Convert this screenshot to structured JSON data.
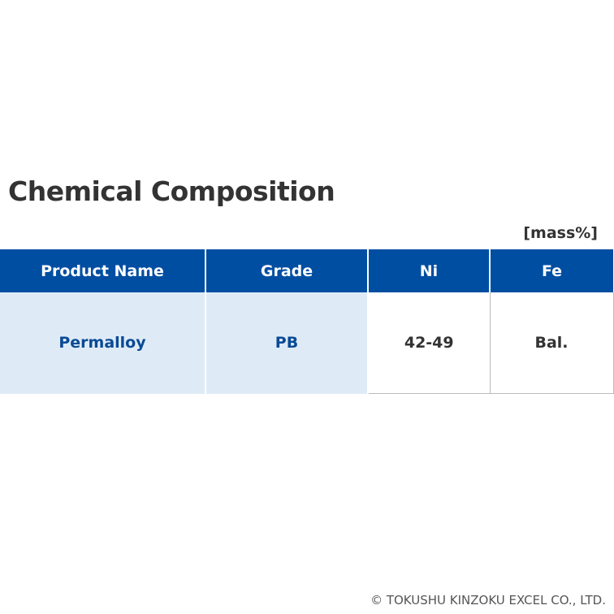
{
  "title": "Chemical Composition",
  "unit": "[mass%]",
  "table": {
    "header": [
      "Product Name",
      "Grade",
      "Ni",
      "Fe"
    ],
    "rows": [
      [
        "Permalloy",
        "PB",
        "42-49",
        "Bal."
      ]
    ]
  },
  "footer": "© TOKUSHU KINZOKU EXCEL CO., LTD."
}
